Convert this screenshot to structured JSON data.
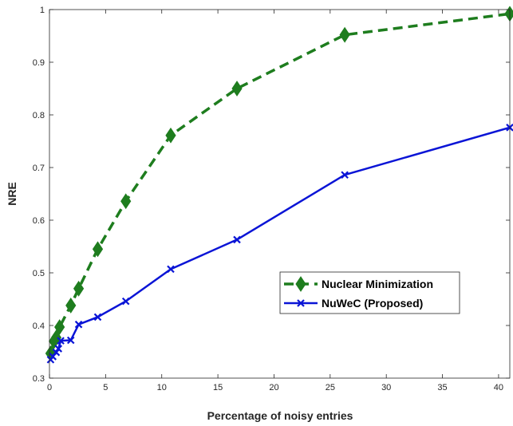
{
  "chart_data": {
    "type": "line",
    "title": "",
    "xlabel": "Percentage of noisy entries",
    "ylabel": "NRE",
    "xlim": [
      0,
      41
    ],
    "ylim": [
      0.3,
      1
    ],
    "xticks": [
      0,
      5,
      10,
      15,
      20,
      25,
      30,
      35,
      40
    ],
    "yticks": [
      0.3,
      0.4,
      0.5,
      0.6,
      0.7,
      0.8,
      0.9,
      1
    ],
    "ytick_labels": [
      "0.3",
      "0.4",
      "0.5",
      "0.6",
      "0.7",
      "0.8",
      "0.9",
      "1"
    ],
    "grid": false,
    "legend_position": "center-right",
    "series": [
      {
        "name": "Nuclear Minimization",
        "color": "#1e7d1e",
        "line_style": "dashed",
        "marker": "diamond",
        "x": [
          0.1,
          0.4,
          0.6,
          0.9,
          1.9,
          2.6,
          4.3,
          6.8,
          10.8,
          16.7,
          26.3,
          41
        ],
        "y": [
          0.347,
          0.37,
          0.377,
          0.397,
          0.438,
          0.47,
          0.545,
          0.636,
          0.761,
          0.85,
          0.952,
          0.992
        ]
      },
      {
        "name": "NuWeC (Proposed)",
        "color": "#0a14d6",
        "line_style": "solid",
        "marker": "x",
        "x": [
          0.1,
          0.3,
          0.6,
          0.8,
          1.0,
          1.9,
          2.6,
          4.3,
          6.8,
          10.8,
          16.7,
          26.3,
          41
        ],
        "y": [
          0.335,
          0.341,
          0.349,
          0.356,
          0.371,
          0.372,
          0.402,
          0.416,
          0.446,
          0.507,
          0.563,
          0.686,
          0.776
        ]
      }
    ]
  }
}
